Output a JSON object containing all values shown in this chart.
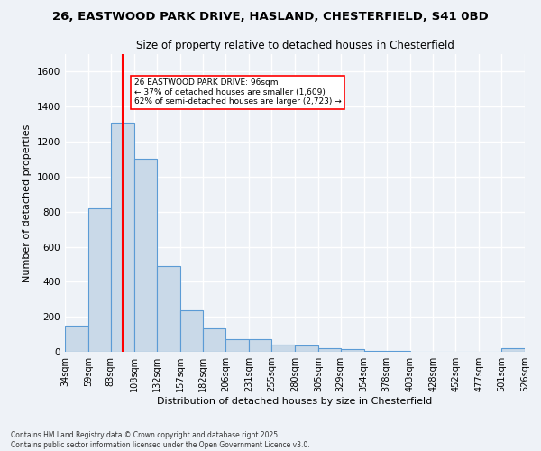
{
  "title_line1": "26, EASTWOOD PARK DRIVE, HASLAND, CHESTERFIELD, S41 0BD",
  "title_line2": "Size of property relative to detached houses in Chesterfield",
  "xlabel": "Distribution of detached houses by size in Chesterfield",
  "ylabel": "Number of detached properties",
  "bar_edges": [
    34,
    59,
    83,
    108,
    132,
    157,
    182,
    206,
    231,
    255,
    280,
    305,
    329,
    354,
    378,
    403,
    428,
    452,
    477,
    501,
    526
  ],
  "bar_heights": [
    150,
    820,
    1310,
    1100,
    490,
    235,
    135,
    70,
    70,
    40,
    35,
    20,
    15,
    5,
    5,
    0,
    0,
    0,
    0,
    20
  ],
  "bar_color": "#c9d9e8",
  "bar_edge_color": "#5b9bd5",
  "red_line_x": 96,
  "annotation_text": "26 EASTWOOD PARK DRIVE: 96sqm\n← 37% of detached houses are smaller (1,609)\n62% of semi-detached houses are larger (2,723) →",
  "footer_text": "Contains HM Land Registry data © Crown copyright and database right 2025.\nContains public sector information licensed under the Open Government Licence v3.0.",
  "ylim": [
    0,
    1700
  ],
  "background_color": "#eef2f7",
  "grid_color": "#ffffff",
  "title_fontsize": 9.5,
  "subtitle_fontsize": 8.5,
  "axis_label_fontsize": 8,
  "tick_fontsize": 7,
  "footer_fontsize": 5.5,
  "annotation_fontsize": 6.5,
  "yticks": [
    0,
    200,
    400,
    600,
    800,
    1000,
    1200,
    1400,
    1600
  ]
}
